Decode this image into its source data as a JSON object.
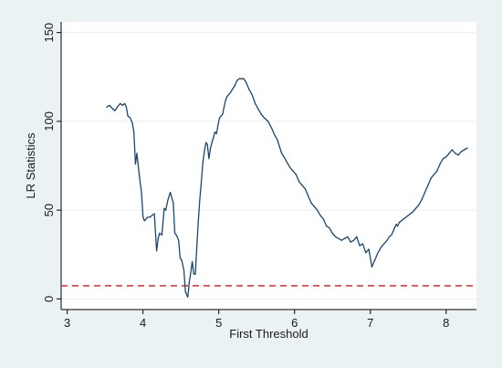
{
  "chart_data": {
    "type": "line",
    "title": "",
    "xlabel": "First Threshold",
    "ylabel": "LR Statistics",
    "xlim": [
      2.92,
      8.4
    ],
    "ylim": [
      -6,
      156
    ],
    "xticks": [
      3,
      4,
      5,
      6,
      7,
      8
    ],
    "yticks": [
      0,
      50,
      100,
      150
    ],
    "grid": "horizontal",
    "legend": "none",
    "colors": {
      "background": "#eaf2f3",
      "plot_background": "#ffffff",
      "line": "#1a476f",
      "reference": "#e8363e",
      "grid": "#e9eeef"
    },
    "reference_line": {
      "y": 7.4,
      "style": "dashed"
    },
    "series": [
      {
        "x": [
          3.52,
          3.56,
          3.6,
          3.63,
          3.66,
          3.7,
          3.73,
          3.76,
          3.78,
          3.8,
          3.83,
          3.86,
          3.88,
          3.9,
          3.92,
          3.95,
          3.98,
          4.0,
          4.02,
          4.04,
          4.06,
          4.09,
          4.12,
          4.15,
          4.18,
          4.2,
          4.22,
          4.25,
          4.28,
          4.3,
          4.33,
          4.36,
          4.38,
          4.4,
          4.42,
          4.44,
          4.47,
          4.49,
          4.51,
          4.54,
          4.56,
          4.59,
          4.61,
          4.63,
          4.65,
          4.67,
          4.69,
          4.71,
          4.73,
          4.75,
          4.77,
          4.79,
          4.81,
          4.83,
          4.85,
          4.87,
          4.89,
          4.91,
          4.93,
          4.95,
          4.97,
          4.99,
          5.01,
          5.03,
          5.05,
          5.07,
          5.09,
          5.11,
          5.13,
          5.15,
          5.18,
          5.21,
          5.24,
          5.27,
          5.3,
          5.33,
          5.36,
          5.4,
          5.44,
          5.48,
          5.52,
          5.56,
          5.6,
          5.65,
          5.7,
          5.74,
          5.77,
          5.8,
          5.83,
          5.86,
          5.9,
          5.94,
          5.98,
          6.02,
          6.06,
          6.1,
          6.14,
          6.18,
          6.22,
          6.26,
          6.3,
          6.34,
          6.38,
          6.42,
          6.46,
          6.5,
          6.54,
          6.58,
          6.62,
          6.66,
          6.7,
          6.74,
          6.78,
          6.82,
          6.86,
          6.9,
          6.94,
          6.98,
          7.02,
          7.06,
          7.1,
          7.14,
          7.18,
          7.22,
          7.25,
          7.28,
          7.3,
          7.32,
          7.34,
          7.36,
          7.38,
          7.41,
          7.44,
          7.47,
          7.5,
          7.53,
          7.56,
          7.6,
          7.64,
          7.68,
          7.72,
          7.76,
          7.8,
          7.84,
          7.88,
          7.92,
          7.96,
          8.0,
          8.04,
          8.08,
          8.12,
          8.16,
          8.2,
          8.24,
          8.28
        ],
        "y": [
          108,
          109,
          107,
          106,
          108,
          110,
          109,
          110,
          108,
          103,
          102,
          99,
          94,
          76,
          82,
          70,
          60,
          46,
          44,
          45,
          46,
          46,
          47,
          48,
          27,
          34,
          37,
          36,
          51,
          50,
          56,
          60,
          57,
          54,
          37,
          36,
          33,
          23,
          22,
          16,
          4,
          1,
          9,
          15,
          21,
          14,
          14,
          29,
          44,
          56,
          66,
          77,
          83,
          88,
          87,
          79,
          85,
          88,
          91,
          94,
          93,
          98,
          102,
          103,
          104,
          108,
          112,
          114,
          115,
          116,
          118,
          120,
          123,
          124,
          124,
          124,
          122,
          118,
          115,
          110,
          107,
          104,
          102,
          100,
          96,
          92,
          90,
          86,
          82,
          80,
          77,
          74,
          72,
          70,
          66,
          64,
          62,
          58,
          54,
          52,
          50,
          47,
          45,
          41,
          40,
          37,
          35,
          34,
          33,
          34,
          35,
          32,
          33,
          35,
          30,
          31,
          26,
          28,
          18,
          22,
          26,
          29,
          31,
          33,
          35,
          36,
          38,
          40,
          42,
          41,
          43,
          44,
          45,
          46,
          47,
          48,
          49,
          51,
          53,
          56,
          60,
          64,
          68,
          70,
          72,
          76,
          79,
          80,
          82,
          84,
          82,
          81,
          83,
          84,
          85
        ]
      }
    ]
  }
}
